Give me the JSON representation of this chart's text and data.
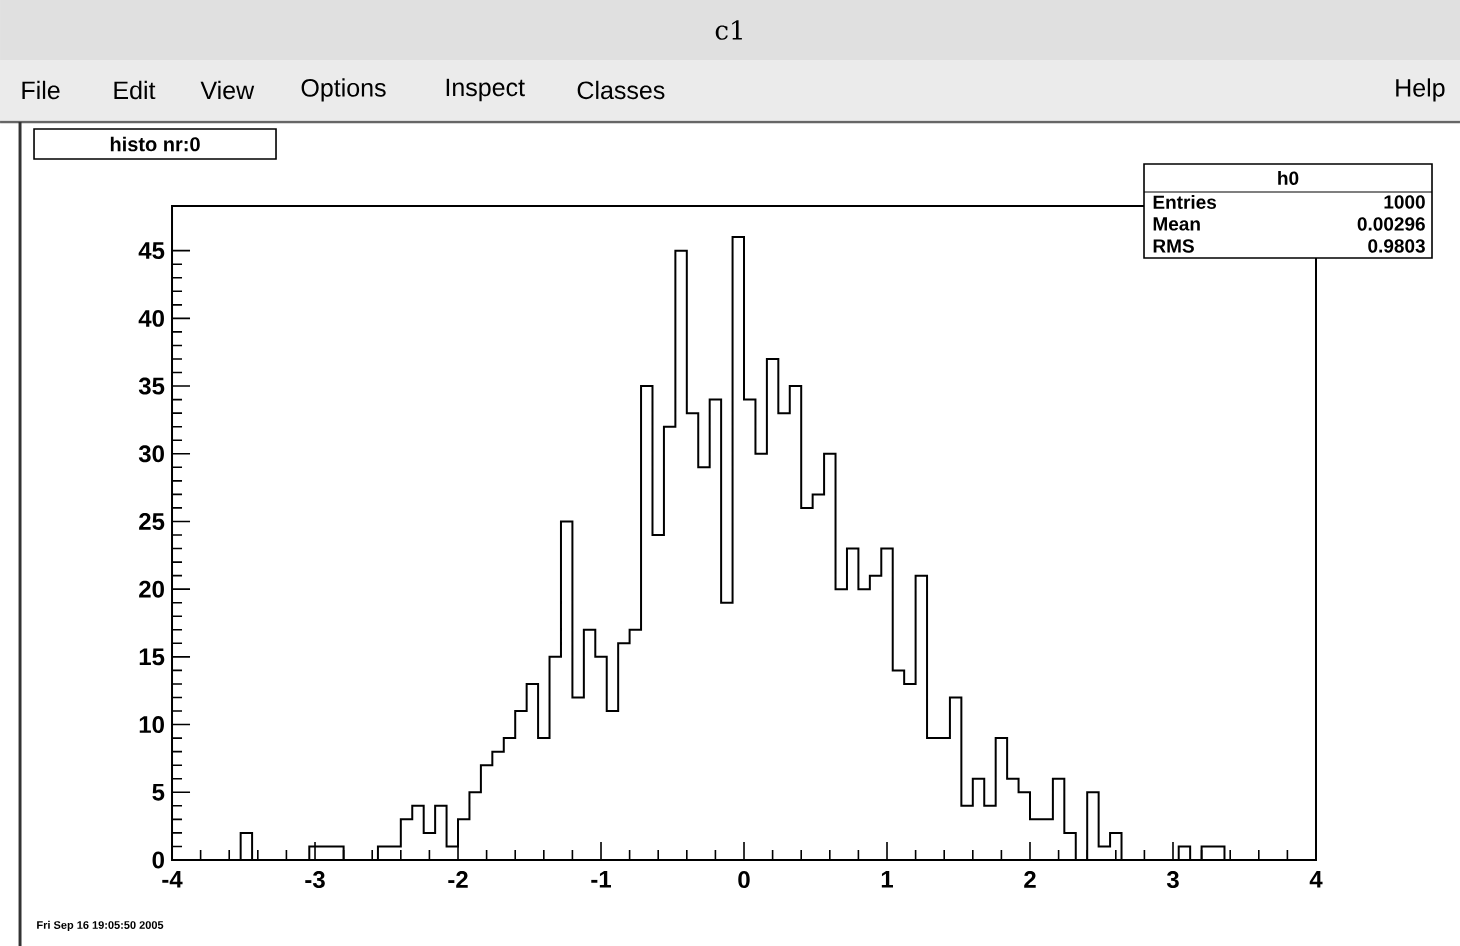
{
  "chart_data": {
    "type": "histogram",
    "title": "histo nr:0",
    "bins": [
      -4,
      -3.92,
      -3.84,
      -3.76,
      -3.68,
      -3.6,
      -3.52,
      -3.44,
      -3.36,
      -3.28,
      -3.2,
      -3.12,
      -3.04,
      -2.96,
      -2.88,
      -2.8,
      -2.72,
      -2.64,
      -2.56,
      -2.48,
      -2.4,
      -2.32,
      -2.24,
      -2.16,
      -2.08,
      -2,
      -1.92,
      -1.84,
      -1.76,
      -1.68,
      -1.6,
      -1.52,
      -1.44,
      -1.36,
      -1.28,
      -1.2,
      -1.12,
      -1.04,
      -0.96,
      -0.88,
      -0.8,
      -0.72,
      -0.64,
      -0.56,
      -0.48,
      -0.4,
      -0.32,
      -0.24,
      -0.16,
      -0.08,
      0,
      0.08,
      0.16,
      0.24,
      0.32,
      0.4,
      0.48,
      0.56,
      0.64,
      0.72,
      0.8,
      0.88,
      0.96,
      1.04,
      1.12,
      1.2,
      1.28,
      1.36,
      1.44,
      1.52,
      1.6,
      1.68,
      1.76,
      1.84,
      1.92,
      2,
      2.08,
      2.16,
      2.24,
      2.32,
      2.4,
      2.48,
      2.56,
      2.64,
      2.72,
      2.8,
      2.88,
      2.96,
      3.04,
      3.12,
      3.2,
      3.28,
      3.36,
      3.44,
      3.52,
      3.6,
      3.68,
      3.76,
      3.84,
      3.92,
      4
    ],
    "values": [
      0,
      0,
      0,
      0,
      0,
      0,
      2,
      0,
      0,
      0,
      0,
      0,
      1,
      1,
      1,
      0,
      0,
      0,
      1,
      1,
      3,
      4,
      2,
      4,
      1,
      3,
      5,
      7,
      8,
      9,
      11,
      13,
      9,
      15,
      25,
      12,
      17,
      15,
      11,
      16,
      17,
      35,
      24,
      32,
      45,
      33,
      29,
      34,
      19,
      46,
      34,
      30,
      37,
      33,
      35,
      26,
      27,
      30,
      20,
      23,
      20,
      21,
      23,
      14,
      13,
      21,
      9,
      9,
      12,
      4,
      6,
      4,
      9,
      6,
      5,
      3,
      3,
      6,
      2,
      0,
      5,
      1,
      2,
      0,
      0,
      0,
      0,
      0,
      1,
      0,
      1,
      1,
      0,
      0,
      0,
      0,
      0,
      0,
      0,
      0
    ],
    "color": "#000000",
    "xlim": [
      -4,
      4
    ],
    "xticks": [
      -4,
      -3,
      -2,
      -1,
      0,
      1,
      2,
      3,
      4
    ],
    "ylim": [
      0,
      48.3
    ],
    "yticks": [
      0,
      5,
      10,
      15,
      20,
      25,
      30,
      35,
      40,
      45
    ],
    "grid": false,
    "annotations": [
      "c1",
      "File",
      "Edit",
      "View",
      "Options",
      "Inspect",
      "Classes",
      "Help",
      "h0",
      "Entries",
      "1000",
      "Mean",
      "0.00296",
      "RMS",
      "0.9803",
      "Fri Sep 16 19:05:50 2005"
    ]
  }
}
